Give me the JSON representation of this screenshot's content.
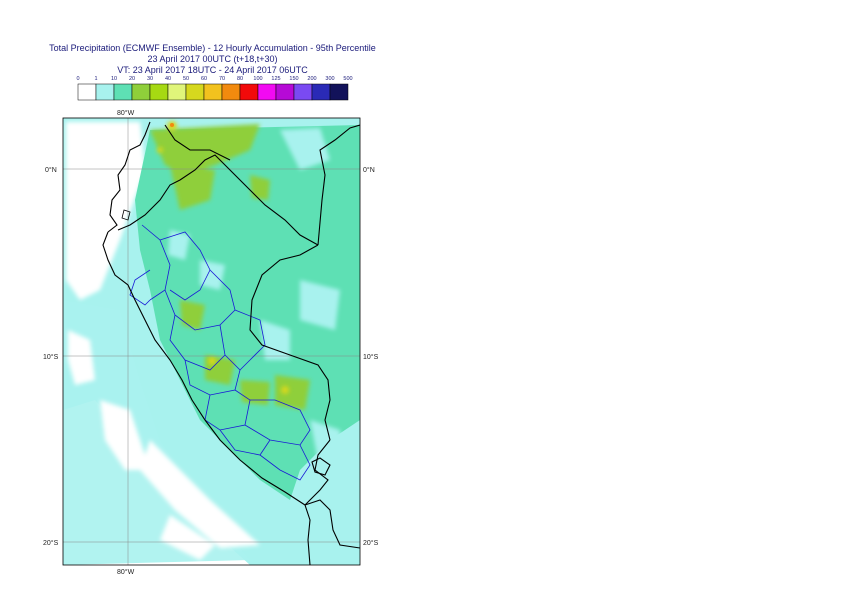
{
  "title": {
    "line1": "Total Precipitation (ECMWF Ensemble) - 12 Hourly Accumulation - 95th Percentile",
    "line2": "23 April 2017 00UTC (t+18,t+30)",
    "line3": "VT: 23 April 2017 18UTC - 24 April 2017 06UTC"
  },
  "legend": {
    "thresholds": [
      "0",
      "1",
      "10",
      "20",
      "30",
      "40",
      "50",
      "60",
      "70",
      "80",
      "100",
      "125",
      "150",
      "200",
      "300",
      "500"
    ],
    "colors": [
      "#ffffff",
      "#a8f2ee",
      "#5ee0b4",
      "#8fcf3a",
      "#a6d912",
      "#e0f57a",
      "#d6d81e",
      "#f2c21e",
      "#f28a0e",
      "#f20a0a",
      "#f20af2",
      "#b60ad6",
      "#7a4af2",
      "#2a2ab6",
      "#12125a"
    ]
  },
  "map": {
    "lat_labels": [
      "0°N",
      "10°S",
      "20°S"
    ],
    "lon_label": "80°W"
  }
}
